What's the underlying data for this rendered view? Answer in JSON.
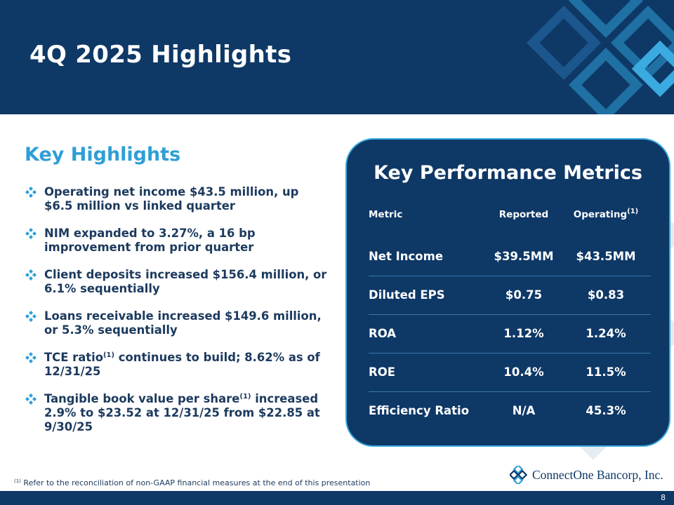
{
  "header": {
    "title": "4Q 2025 Highlights"
  },
  "key_highlights": {
    "title": "Key Highlights",
    "bullets": [
      {
        "text": "Operating net income $43.5 million, up $6.5 million vs linked quarter"
      },
      {
        "text": "NIM expanded to 3.27%, a 16 bp improvement from prior quarter"
      },
      {
        "text": "Client deposits increased $156.4 million, or 6.1% sequentially"
      },
      {
        "text": "Loans receivable increased $149.6 million, or 5.3% sequentially"
      },
      {
        "pre": "TCE ratio",
        "sup": "(1)",
        "post": " continues to build; 8.62% as of 12/31/25"
      },
      {
        "pre": "Tangible book value per share",
        "sup": "(1)",
        "post": " increased 2.9% to $23.52 at 12/31/25 from $22.85 at 9/30/25"
      }
    ]
  },
  "kpm": {
    "title": "Key Performance Metrics",
    "headers": {
      "metric": "Metric",
      "reported": "Reported",
      "operating": "Operating",
      "operating_sup": "(1)"
    },
    "rows": [
      {
        "metric": "Net Income",
        "reported": "$39.5MM",
        "operating": "$43.5MM"
      },
      {
        "metric": "Diluted EPS",
        "reported": "$0.75",
        "operating": "$0.83"
      },
      {
        "metric": "ROA",
        "reported": "1.12%",
        "operating": "1.24%"
      },
      {
        "metric": "ROE",
        "reported": "10.4%",
        "operating": "11.5%"
      },
      {
        "metric": "Efficiency Ratio",
        "reported": "N/A",
        "operating": "45.3%"
      }
    ]
  },
  "footer": {
    "footnote_sup": "(1)",
    "footnote": " Refer to the reconciliation of non-GAAP financial measures at the end of this presentation",
    "logo_text": "ConnectOne Bancorp, Inc.",
    "page_number": "8"
  },
  "colors": {
    "navy": "#0e3866",
    "accent_blue": "#2e9fd6",
    "panel_border": "#3aaae0"
  }
}
